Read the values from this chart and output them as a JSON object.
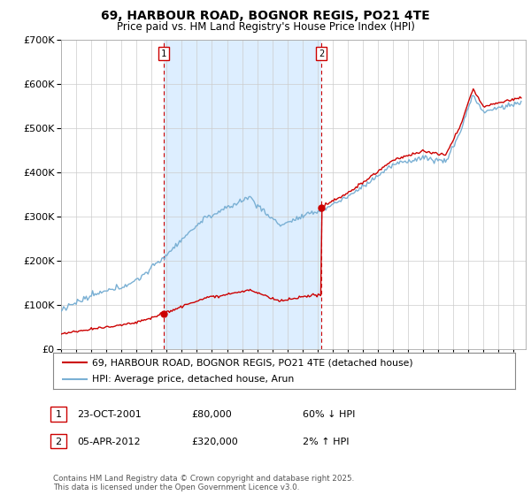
{
  "title": "69, HARBOUR ROAD, BOGNOR REGIS, PO21 4TE",
  "subtitle": "Price paid vs. HM Land Registry's House Price Index (HPI)",
  "legend_line1": "69, HARBOUR ROAD, BOGNOR REGIS, PO21 4TE (detached house)",
  "legend_line2": "HPI: Average price, detached house, Arun",
  "footer": "Contains HM Land Registry data © Crown copyright and database right 2025.\nThis data is licensed under the Open Government Licence v3.0.",
  "sale1_label": "1",
  "sale1_date": "23-OCT-2001",
  "sale1_price": "£80,000",
  "sale1_hpi": "60% ↓ HPI",
  "sale1_year": 2001.81,
  "sale1_value": 80000,
  "sale2_label": "2",
  "sale2_date": "05-APR-2012",
  "sale2_price": "£320,000",
  "sale2_hpi": "2% ↑ HPI",
  "sale2_year": 2012.26,
  "sale2_value": 320000,
  "line_color_red": "#cc0000",
  "line_color_blue": "#7ab0d4",
  "highlight_color": "#ddeeff",
  "vline_color": "#cc0000",
  "plot_bg": "#ffffff",
  "ylim": [
    0,
    700000
  ],
  "yticks": [
    0,
    100000,
    200000,
    300000,
    400000,
    500000,
    600000,
    700000
  ],
  "xlim_start": 1995.0,
  "xlim_end": 2025.8,
  "xticks": [
    1995,
    1996,
    1997,
    1998,
    1999,
    2000,
    2001,
    2002,
    2003,
    2004,
    2005,
    2006,
    2007,
    2008,
    2009,
    2010,
    2011,
    2012,
    2013,
    2014,
    2015,
    2016,
    2017,
    2018,
    2019,
    2020,
    2021,
    2022,
    2023,
    2024,
    2025
  ]
}
